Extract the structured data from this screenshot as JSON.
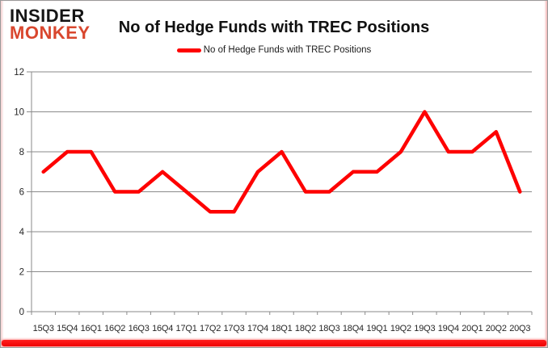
{
  "logo": {
    "line1": "INSIDER",
    "line2": "MONKEY"
  },
  "header": {
    "title": "No of Hedge Funds with TREC Positions"
  },
  "legend": {
    "label": "No of Hedge Funds with TREC Positions"
  },
  "colors": {
    "series_line": "#fe0000",
    "gridline": "#8a8a8a",
    "axis_text": "#262626",
    "logo_black": "#151515",
    "logo_red": "#d9472e",
    "bottom_bar": "#f40808"
  },
  "chart_data": {
    "type": "line",
    "title": "No of Hedge Funds with TREC Positions",
    "categories": [
      "15Q3",
      "15Q4",
      "16Q1",
      "16Q2",
      "16Q3",
      "16Q4",
      "17Q1",
      "17Q2",
      "17Q3",
      "17Q4",
      "18Q1",
      "18Q2",
      "18Q3",
      "18Q4",
      "19Q1",
      "19Q2",
      "19Q3",
      "19Q4",
      "20Q1",
      "20Q2",
      "20Q3"
    ],
    "values": [
      7,
      8,
      8,
      6,
      6,
      7,
      6,
      5,
      5,
      7,
      8,
      6,
      6,
      7,
      7,
      8,
      10,
      8,
      8,
      9,
      6
    ],
    "xlabel": "",
    "ylabel": "",
    "ylim": [
      0,
      12
    ],
    "ytick_step": 2,
    "grid": true,
    "legend_position": "top-center",
    "series_color": "#fe0000"
  }
}
